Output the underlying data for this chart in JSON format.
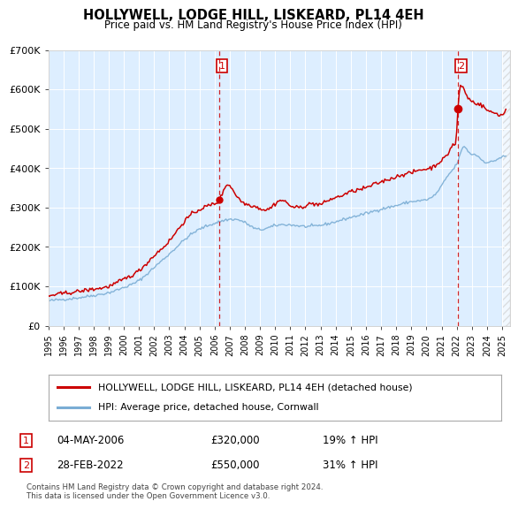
{
  "title": "HOLLYWELL, LODGE HILL, LISKEARD, PL14 4EH",
  "subtitle": "Price paid vs. HM Land Registry's House Price Index (HPI)",
  "legend_line1": "HOLLYWELL, LODGE HILL, LISKEARD, PL14 4EH (detached house)",
  "legend_line2": "HPI: Average price, detached house, Cornwall",
  "annotation1": {
    "label": "1",
    "date_x": 2006.33,
    "price": 320000,
    "text": "04-MAY-2006",
    "pct": "19% ↑ HPI"
  },
  "annotation2": {
    "label": "2",
    "date_x": 2022.083,
    "price": 550000,
    "text": "28-FEB-2022",
    "pct": "31% ↑ HPI"
  },
  "footnote": "Contains HM Land Registry data © Crown copyright and database right 2024.\nThis data is licensed under the Open Government Licence v3.0.",
  "hpi_color": "#7aadd4",
  "price_color": "#cc0000",
  "plot_bg_color": "#ddeeff",
  "grid_color": "#ffffff",
  "ylim": [
    0,
    700000
  ],
  "yticks": [
    0,
    100000,
    200000,
    300000,
    400000,
    500000,
    600000,
    700000
  ],
  "ytick_labels": [
    "£0",
    "£100K",
    "£200K",
    "£300K",
    "£400K",
    "£500K",
    "£600K",
    "£700K"
  ],
  "xlim_left": 1995.0,
  "xlim_right": 2025.5,
  "hpi_anchors": [
    [
      1995.0,
      63000
    ],
    [
      1996.0,
      67000
    ],
    [
      1997.0,
      71000
    ],
    [
      1998.0,
      77000
    ],
    [
      1999.0,
      84000
    ],
    [
      2000.0,
      97000
    ],
    [
      2001.0,
      115000
    ],
    [
      2002.0,
      148000
    ],
    [
      2003.0,
      182000
    ],
    [
      2004.0,
      218000
    ],
    [
      2005.0,
      245000
    ],
    [
      2006.0,
      260000
    ],
    [
      2007.0,
      270000
    ],
    [
      2008.0,
      262000
    ],
    [
      2008.8,
      245000
    ],
    [
      2009.5,
      248000
    ],
    [
      2010.0,
      254000
    ],
    [
      2011.0,
      256000
    ],
    [
      2012.0,
      252000
    ],
    [
      2013.0,
      255000
    ],
    [
      2014.0,
      264000
    ],
    [
      2015.0,
      275000
    ],
    [
      2016.0,
      285000
    ],
    [
      2017.0,
      296000
    ],
    [
      2018.0,
      305000
    ],
    [
      2019.0,
      315000
    ],
    [
      2020.0,
      320000
    ],
    [
      2020.5,
      330000
    ],
    [
      2021.0,
      355000
    ],
    [
      2021.5,
      385000
    ],
    [
      2022.1,
      420000
    ],
    [
      2022.5,
      455000
    ],
    [
      2022.8,
      440000
    ],
    [
      2023.2,
      435000
    ],
    [
      2023.7,
      420000
    ],
    [
      2024.2,
      415000
    ],
    [
      2024.8,
      425000
    ],
    [
      2025.2,
      430000
    ]
  ],
  "price_anchors": [
    [
      1995.0,
      75000
    ],
    [
      1996.0,
      82000
    ],
    [
      1997.0,
      87000
    ],
    [
      1998.0,
      93000
    ],
    [
      1999.0,
      100000
    ],
    [
      2000.0,
      118000
    ],
    [
      2001.0,
      140000
    ],
    [
      2002.0,
      178000
    ],
    [
      2003.0,
      215000
    ],
    [
      2004.0,
      265000
    ],
    [
      2005.0,
      295000
    ],
    [
      2006.0,
      310000
    ],
    [
      2006.33,
      320000
    ],
    [
      2006.8,
      358000
    ],
    [
      2007.2,
      345000
    ],
    [
      2007.8,
      315000
    ],
    [
      2008.5,
      305000
    ],
    [
      2009.0,
      298000
    ],
    [
      2009.5,
      295000
    ],
    [
      2010.0,
      310000
    ],
    [
      2010.5,
      318000
    ],
    [
      2011.0,
      305000
    ],
    [
      2011.5,
      300000
    ],
    [
      2012.0,
      305000
    ],
    [
      2012.5,
      310000
    ],
    [
      2013.0,
      308000
    ],
    [
      2013.5,
      318000
    ],
    [
      2014.0,
      325000
    ],
    [
      2014.5,
      332000
    ],
    [
      2015.0,
      340000
    ],
    [
      2015.5,
      345000
    ],
    [
      2016.0,
      350000
    ],
    [
      2016.5,
      358000
    ],
    [
      2017.0,
      365000
    ],
    [
      2017.5,
      372000
    ],
    [
      2018.0,
      378000
    ],
    [
      2018.5,
      385000
    ],
    [
      2019.0,
      388000
    ],
    [
      2019.5,
      395000
    ],
    [
      2020.0,
      398000
    ],
    [
      2020.5,
      405000
    ],
    [
      2021.0,
      420000
    ],
    [
      2021.5,
      442000
    ],
    [
      2021.8,
      460000
    ],
    [
      2022.0,
      490000
    ],
    [
      2022.083,
      550000
    ],
    [
      2022.3,
      610000
    ],
    [
      2022.5,
      598000
    ],
    [
      2022.7,
      582000
    ],
    [
      2023.0,
      570000
    ],
    [
      2023.3,
      565000
    ],
    [
      2023.7,
      558000
    ],
    [
      2024.0,
      548000
    ],
    [
      2024.3,
      542000
    ],
    [
      2024.7,
      538000
    ],
    [
      2025.0,
      535000
    ],
    [
      2025.3,
      555000
    ]
  ]
}
